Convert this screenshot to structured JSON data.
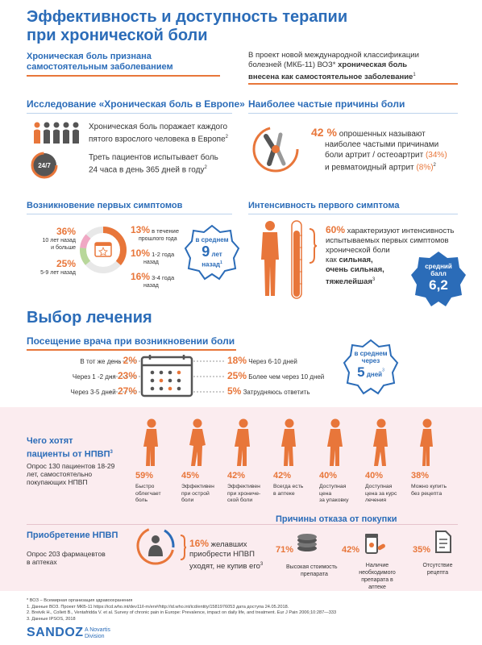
{
  "title_line1": "Эффективность и доступность терапии",
  "title_line2": "при хронической боли",
  "intro": {
    "left_line1": "Хроническая боль признана",
    "left_line2": "самостоятельным заболеванием",
    "right_line1": "В проект новой международной классификации",
    "right_line2a": "болезней  (МКБ-11) ВОЗ*",
    "right_line2b": " хроническая боль",
    "right_line3": "внесена как самостоятельное  заболевание",
    "right_sup": "1"
  },
  "study": {
    "title": "Исследование «Хроническая боль в Европе»",
    "fact1_line1": "Хроническая боль поражает каждого",
    "fact1_line2": "пятого взрослого человека в Европе",
    "fact1_sup": "2",
    "fact2_line1": "Треть пациентов испытывает боль",
    "fact2_line2": "24 часа в день 365 дней в году",
    "fact2_sup": "2",
    "clock_label": "24/7"
  },
  "causes": {
    "title": "Наиболее частые причины боли",
    "pct": "42 %",
    "line1": " опрошенных называют",
    "line2": "наиболее частыми причинами",
    "line3a": "боли артрит / остеоартрит ",
    "line3b": "(34%)",
    "line4a": "и ревматоидный артрит ",
    "line4b": "(8%)",
    "sup": "2"
  },
  "onset": {
    "title": "Возникновение первых симптомов",
    "l1_pct": "36%",
    "l1_text1": "10 лет назад",
    "l1_text2": "и больше",
    "l2_pct": "25%",
    "l2_text": "5-9 лет назад",
    "r1_pct": "13%",
    "r1_text1": " в течение",
    "r1_text2": "прошлого года",
    "r2_pct": "10%",
    "r2_text1": " 1-2 года",
    "r2_text2": "назад",
    "r3_pct": "16%",
    "r3_text1": " 3-4 года",
    "r3_text2": "назад",
    "badge_l1": "в среднем",
    "badge_num": "9",
    "badge_l2": " лет",
    "badge_l3": "назад",
    "badge_sup": "1"
  },
  "intensity": {
    "title": "Интенсивность первого симптома",
    "pct": "60%",
    "line1": " характеризуют интенсивность",
    "line2": "испытываемых первых симптомов",
    "line3": "хронической боли",
    "line4a": "как ",
    "line4b": "сильная,",
    "line5": "очень сильная,",
    "line6": "тяжелейшая",
    "sup": "3",
    "badge_l1": "средний",
    "badge_l2": "балл",
    "badge_num": "6,2"
  },
  "treatment": {
    "title": "Выбор лечения",
    "visit_title": "Посещение врача при возникновении боли",
    "left": [
      {
        "label": "В тот же день",
        "pct": "2%"
      },
      {
        "label": "Через 1 -2 дня",
        "pct": "23%"
      },
      {
        "label": "Через 3-5 дней",
        "pct": "27%"
      }
    ],
    "right": [
      {
        "pct": "18%",
        "label": "Через 6-10 дней"
      },
      {
        "pct": "25%",
        "label": "Более чем   через 10 дней"
      },
      {
        "pct": "5%",
        "label": "Затрудняюсь ответить"
      }
    ],
    "badge_l1": "в среднем",
    "badge_l2": "через",
    "badge_num": "5",
    "badge_l3": " дней",
    "badge_sup": "3"
  },
  "nsaid": {
    "title_line1": "Чего хотят",
    "title_line2": "пациенты от НПВП",
    "title_sup": "3",
    "desc": [
      "Опрос 130 пациентов 18-29",
      "лет, самостоятельно",
      "покупающих НПВП"
    ],
    "items": [
      {
        "pct": "59%",
        "lines": [
          "Быстро",
          "облегчает",
          "боль"
        ]
      },
      {
        "pct": "45%",
        "lines": [
          "Эффективен",
          "при острой",
          "боли"
        ]
      },
      {
        "pct": "42%",
        "lines": [
          "Эффективен",
          "при хрониче-",
          "ской боли"
        ]
      },
      {
        "pct": "42%",
        "lines": [
          "Всегда есть",
          "в аптеке"
        ]
      },
      {
        "pct": "40%",
        "lines": [
          "Доступная",
          "цена",
          "за упаковку"
        ]
      },
      {
        "pct": "40%",
        "lines": [
          "Доступная",
          "цена за курс",
          "лечения"
        ]
      },
      {
        "pct": "38%",
        "lines": [
          "Можно купить",
          "без рецепта"
        ]
      }
    ]
  },
  "purchase": {
    "title": "Приобретение НПВП",
    "desc_line1": "Опрос 203 фармацевтов",
    "desc_line2": "в аптеках",
    "pct": "16%",
    "line1": " желавших",
    "line2": "приобрести НПВП",
    "line3": "уходят, не купив его",
    "sup": "3"
  },
  "refusal": {
    "title": "Причины отказа от покупки",
    "items": [
      {
        "pct": "71%",
        "lines": [
          "Высокая стоимость",
          "препарата"
        ]
      },
      {
        "pct": "42%",
        "lines": [
          "Наличие",
          "необходимого",
          "препарата в аптеке"
        ]
      },
      {
        "pct": "35%",
        "lines": [
          "Отсутствие",
          "рецепта"
        ]
      }
    ]
  },
  "footnotes": [
    "* ВОЗ – Всемирная организация здравоохранения",
    "1. Данные ВОЗ. Проект МКБ-11 https://icd.who.int/dev11/l-m/en#/http://id.who.int/icd/entity/1581976053  дата доступа 24.05.2018.",
    "2. Breivik H., Collett B., Ventafridda V. et al. Survey of chronic pain in Europe: Prevalence, impact on daily life, and treatment. Eur J Pain 2006;10:287—333",
    "3. Данные  IPSOS, 2018"
  ],
  "brand": {
    "name": "SANDOZ",
    "sub1": "A Novartis",
    "sub2": "Division"
  },
  "colors": {
    "blue": "#2b6cb8",
    "orange": "#e8763a",
    "pink": "#fbecef",
    "gray": "#555555"
  }
}
